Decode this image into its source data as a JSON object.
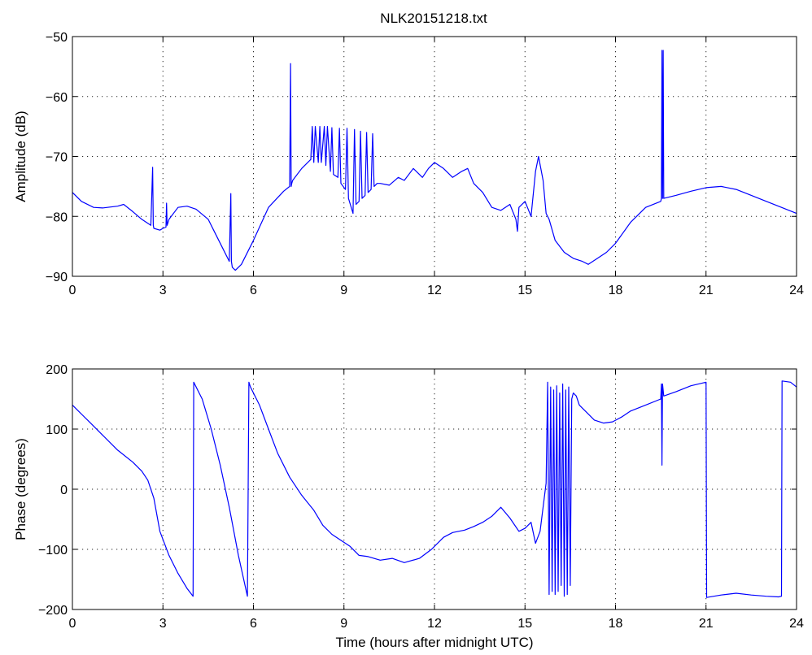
{
  "figure_title": "NLK20151218.txt",
  "colors": {
    "trace": "#0000ff",
    "axes": "#000000",
    "background": "#ffffff"
  },
  "chart_data": [
    {
      "type": "line",
      "title": "NLK20151218.txt",
      "xlabel": "",
      "ylabel": "Amplitude (dB)",
      "xlim": [
        0,
        24
      ],
      "ylim": [
        -90,
        -50
      ],
      "xticks": [
        0,
        3,
        6,
        9,
        12,
        15,
        18,
        21,
        24
      ],
      "yticks": [
        -90,
        -80,
        -70,
        -60,
        -50
      ],
      "xtick_labels": [
        "0",
        "3",
        "6",
        "9",
        "12",
        "15",
        "18",
        "21",
        "24"
      ],
      "ytick_labels": [
        "−90",
        "−80",
        "−70",
        "−60",
        "−50"
      ],
      "grid": true,
      "series": [
        {
          "x": [
            0,
            0.3,
            0.7,
            1.0,
            1.5,
            1.7,
            2.0,
            2.3,
            2.6,
            2.66,
            2.68,
            2.7,
            2.9,
            3.0,
            3.1,
            3.12,
            3.14,
            3.2,
            3.5,
            3.8,
            4.1,
            4.5,
            4.7,
            5.0,
            5.2,
            5.25,
            5.27,
            5.3,
            5.4,
            5.6,
            6.0,
            6.5,
            7.0,
            7.2,
            7.23,
            7.25,
            7.27,
            7.3,
            7.6,
            7.9,
            7.95,
            8.0,
            8.05,
            8.15,
            8.2,
            8.25,
            8.35,
            8.4,
            8.45,
            8.55,
            8.6,
            8.65,
            8.8,
            8.85,
            8.9,
            9.05,
            9.1,
            9.15,
            9.3,
            9.35,
            9.4,
            9.5,
            9.55,
            9.6,
            9.7,
            9.75,
            9.8,
            9.9,
            9.95,
            10.0,
            10.1,
            10.2,
            10.5,
            10.8,
            11.0,
            11.3,
            11.6,
            11.8,
            12.0,
            12.3,
            12.6,
            12.9,
            13.1,
            13.3,
            13.6,
            13.9,
            14.2,
            14.5,
            14.7,
            14.75,
            14.8,
            15.0,
            15.2,
            15.35,
            15.45,
            15.6,
            15.7,
            15.8,
            16.0,
            16.3,
            16.6,
            16.9,
            17.1,
            17.4,
            17.7,
            18.0,
            18.5,
            19.0,
            19.5,
            19.52,
            19.54,
            19.56,
            19.58,
            19.6,
            20.0,
            20.5,
            21.0,
            21.5,
            22.0,
            22.5,
            23.0,
            23.5,
            24.0
          ],
          "y": [
            -76,
            -77.5,
            -78.5,
            -78.6,
            -78.3,
            -78.0,
            -79.2,
            -80.5,
            -81.5,
            -71.8,
            -81.5,
            -82.0,
            -82.3,
            -82.0,
            -81.8,
            -77.8,
            -81.5,
            -80.5,
            -78.5,
            -78.3,
            -78.8,
            -80.5,
            -82.5,
            -85.5,
            -87.5,
            -76.2,
            -87.5,
            -88.5,
            -89.0,
            -88.0,
            -84.0,
            -78.5,
            -75.8,
            -75.0,
            -54.5,
            -75.0,
            -74.5,
            -74.0,
            -72.0,
            -70.5,
            -65.0,
            -71.0,
            -65.0,
            -71.0,
            -65.0,
            -71.0,
            -65.0,
            -71.5,
            -65.0,
            -72.5,
            -65.2,
            -73.0,
            -73.5,
            -65.3,
            -74.5,
            -75.5,
            -65.3,
            -77.0,
            -79.5,
            -65.5,
            -78.0,
            -77.5,
            -65.8,
            -77.0,
            -76.5,
            -66.0,
            -76.0,
            -75.5,
            -66.2,
            -75.0,
            -74.5,
            -74.5,
            -74.8,
            -73.5,
            -74.0,
            -72.0,
            -73.5,
            -72.0,
            -71.0,
            -72.0,
            -73.5,
            -72.5,
            -72.0,
            -74.5,
            -76.0,
            -78.5,
            -79.0,
            -78.0,
            -80.5,
            -82.5,
            -78.5,
            -77.5,
            -80.0,
            -72.5,
            -70.0,
            -74.0,
            -79.5,
            -80.5,
            -84.0,
            -86.0,
            -87.0,
            -87.5,
            -88.0,
            -87.0,
            -86.0,
            -84.5,
            -81.0,
            -78.5,
            -77.5,
            -77.0,
            -52.3,
            -77.0,
            -52.3,
            -77.0,
            -76.5,
            -75.8,
            -75.2,
            -75.0,
            -75.5,
            -76.5,
            -77.5,
            -78.5,
            -79.5
          ]
        }
      ]
    },
    {
      "type": "line",
      "title": "",
      "xlabel": "Time (hours after midnight UTC)",
      "ylabel": "Phase (degrees)",
      "xlim": [
        0,
        24
      ],
      "ylim": [
        -200,
        200
      ],
      "xticks": [
        0,
        3,
        6,
        9,
        12,
        15,
        18,
        21,
        24
      ],
      "yticks": [
        -200,
        -100,
        0,
        100,
        200
      ],
      "xtick_labels": [
        "0",
        "3",
        "6",
        "9",
        "12",
        "15",
        "18",
        "21",
        "24"
      ],
      "ytick_labels": [
        "−200",
        "−100",
        "0",
        "100",
        "200"
      ],
      "grid": true,
      "series": [
        {
          "x": [
            0,
            0.3,
            0.6,
            1.0,
            1.5,
            2.0,
            2.3,
            2.5,
            2.7,
            2.9,
            3.2,
            3.5,
            3.8,
            4.0,
            4.02,
            4.3,
            4.6,
            4.9,
            5.2,
            5.5,
            5.8,
            5.85,
            5.9,
            6.2,
            6.5,
            6.8,
            7.2,
            7.6,
            8.0,
            8.3,
            8.6,
            8.9,
            9.2,
            9.5,
            9.8,
            10.2,
            10.6,
            11.0,
            11.5,
            11.9,
            12.3,
            12.6,
            13.0,
            13.3,
            13.6,
            13.9,
            14.2,
            14.5,
            14.8,
            15.0,
            15.2,
            15.35,
            15.5,
            15.7,
            15.75,
            15.8,
            15.85,
            15.9,
            15.95,
            16.0,
            16.05,
            16.1,
            16.15,
            16.2,
            16.25,
            16.3,
            16.35,
            16.4,
            16.45,
            16.5,
            16.55,
            16.6,
            16.7,
            16.8,
            17.0,
            17.3,
            17.6,
            17.9,
            18.2,
            18.5,
            19.0,
            19.5,
            19.52,
            19.54,
            19.56,
            19.6,
            20.0,
            20.5,
            21.0,
            21.02,
            21.5,
            22.0,
            22.5,
            23.0,
            23.4,
            23.5,
            23.52,
            23.8,
            24.0
          ],
          "y": [
            140,
            125,
            110,
            90,
            65,
            45,
            30,
            15,
            -15,
            -70,
            -110,
            -140,
            -165,
            -178,
            178,
            150,
            100,
            40,
            -30,
            -110,
            -178,
            178,
            170,
            140,
            100,
            60,
            20,
            -10,
            -35,
            -60,
            -75,
            -85,
            -95,
            -110,
            -112,
            -118,
            -115,
            -122,
            -115,
            -100,
            -80,
            -72,
            -68,
            -62,
            -55,
            -45,
            -30,
            -48,
            -70,
            -65,
            -55,
            -90,
            -70,
            10,
            178,
            -175,
            170,
            -170,
            165,
            -175,
            172,
            -170,
            160,
            -160,
            175,
            -178,
            165,
            -175,
            170,
            -160,
            150,
            160,
            155,
            140,
            130,
            115,
            110,
            112,
            120,
            130,
            140,
            150,
            175,
            40,
            175,
            155,
            162,
            172,
            178,
            -180,
            -176,
            -173,
            -176,
            -178,
            -179,
            -178,
            180,
            178,
            170
          ]
        }
      ]
    }
  ]
}
